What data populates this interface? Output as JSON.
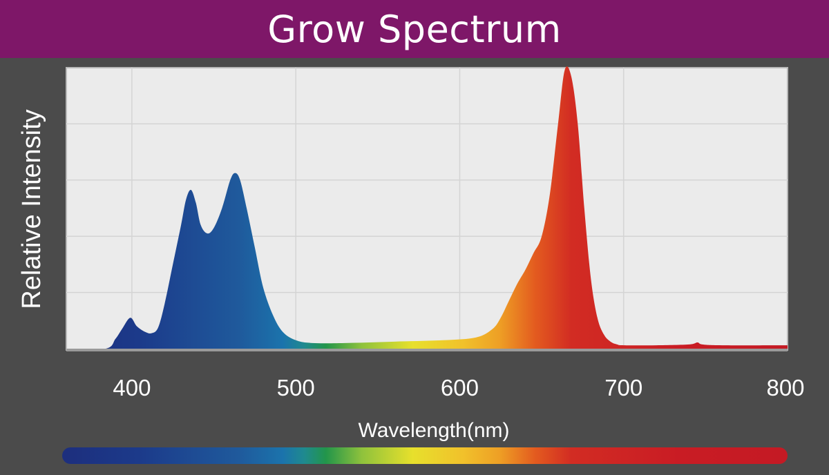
{
  "title": "Grow Spectrum",
  "chart_data": {
    "type": "area",
    "title": "Grow Spectrum",
    "xlabel": "Wavelength(nm)",
    "ylabel": "Relative Intensity",
    "xlim": [
      360,
      800
    ],
    "ylim": [
      0,
      1
    ],
    "x_ticks": [
      400,
      500,
      600,
      700,
      800
    ],
    "y_gridlines": [
      0.2,
      0.4,
      0.6,
      0.8
    ],
    "grid": true,
    "legend": "none",
    "colorbar": "wavelength color gradient below axis (blue to red)",
    "series": [
      {
        "x": [
          360,
          384,
          390,
          394,
          399,
          403,
          408,
          412,
          416,
          420,
          425,
          430,
          433,
          436,
          439,
          442,
          446,
          450,
          455,
          460,
          463,
          466,
          470,
          475,
          480,
          486,
          492,
          500,
          510,
          530,
          560,
          590,
          610,
          620,
          625,
          630,
          635,
          640,
          645,
          650,
          655,
          660,
          664,
          668,
          672,
          676,
          680,
          684,
          688,
          692,
          696,
          700,
          720,
          740,
          745,
          748,
          760,
          800
        ],
        "y": [
          0.0,
          0.0,
          0.035,
          0.07,
          0.11,
          0.08,
          0.06,
          0.055,
          0.075,
          0.16,
          0.3,
          0.44,
          0.53,
          0.565,
          0.52,
          0.44,
          0.41,
          0.43,
          0.5,
          0.6,
          0.625,
          0.6,
          0.5,
          0.36,
          0.22,
          0.12,
          0.06,
          0.03,
          0.02,
          0.02,
          0.025,
          0.03,
          0.04,
          0.07,
          0.11,
          0.17,
          0.23,
          0.28,
          0.34,
          0.4,
          0.55,
          0.8,
          0.99,
          0.97,
          0.8,
          0.5,
          0.25,
          0.11,
          0.05,
          0.025,
          0.015,
          0.012,
          0.012,
          0.015,
          0.022,
          0.015,
          0.012,
          0.012
        ]
      }
    ]
  },
  "colors": {
    "title_bar": "#7e1768",
    "background": "#4b4b4b",
    "plot_area": "#ebebeb",
    "grid": "#d4d4d4"
  }
}
